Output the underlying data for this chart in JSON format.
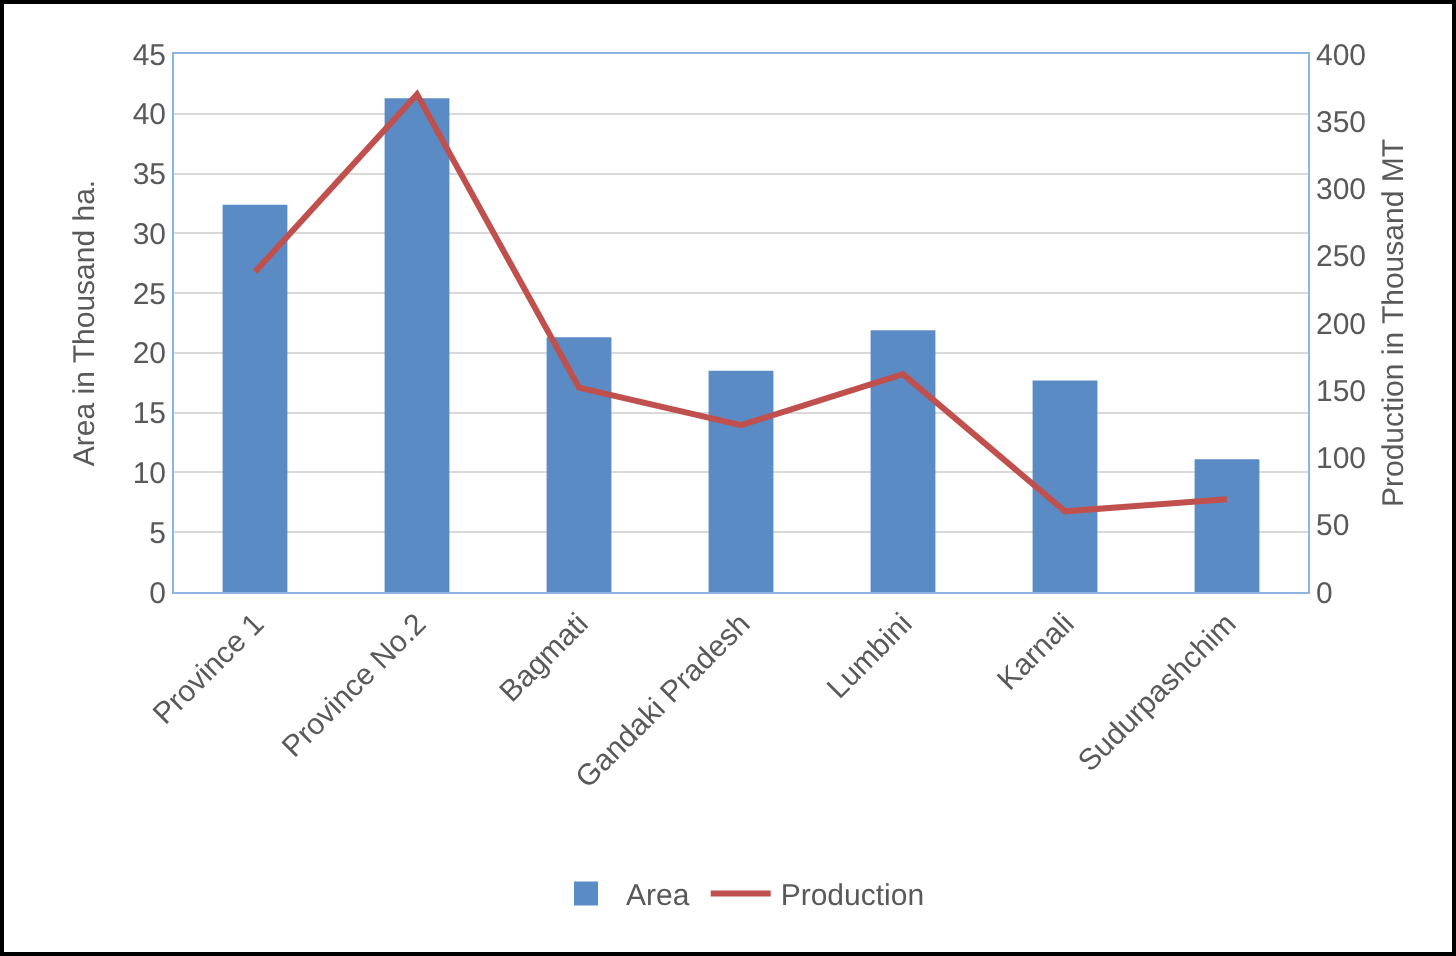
{
  "chart_data": {
    "type": "bar",
    "categories": [
      "Province 1",
      "Province No.2",
      "Bagmati",
      "Gandaki Pradesh",
      "Lumbini",
      "Karnali",
      "Sudurpashchim"
    ],
    "series": [
      {
        "name": "Area",
        "color": "#5b8bc5",
        "values": [
          32.4,
          41.3,
          21.3,
          18.5,
          21.9,
          17.7,
          11.1
        ]
      },
      {
        "name": "Production",
        "type": "line",
        "axis": "y2",
        "color": "#c0504d",
        "values": [
          238,
          370,
          152,
          124,
          162,
          60,
          69
        ]
      }
    ],
    "ylabel": "Area in Thousand ha.",
    "y2label": "Production in Thousand MT",
    "ylim": [
      0,
      45
    ],
    "yticks": [
      0,
      5,
      10,
      15,
      20,
      25,
      30,
      35,
      40,
      45
    ],
    "y2lim": [
      0,
      400
    ],
    "y2ticks": [
      0,
      50,
      100,
      150,
      200,
      250,
      300,
      350,
      400
    ],
    "grid": "y",
    "legend": "bottom",
    "marker": "none",
    "line_style": "solid"
  }
}
